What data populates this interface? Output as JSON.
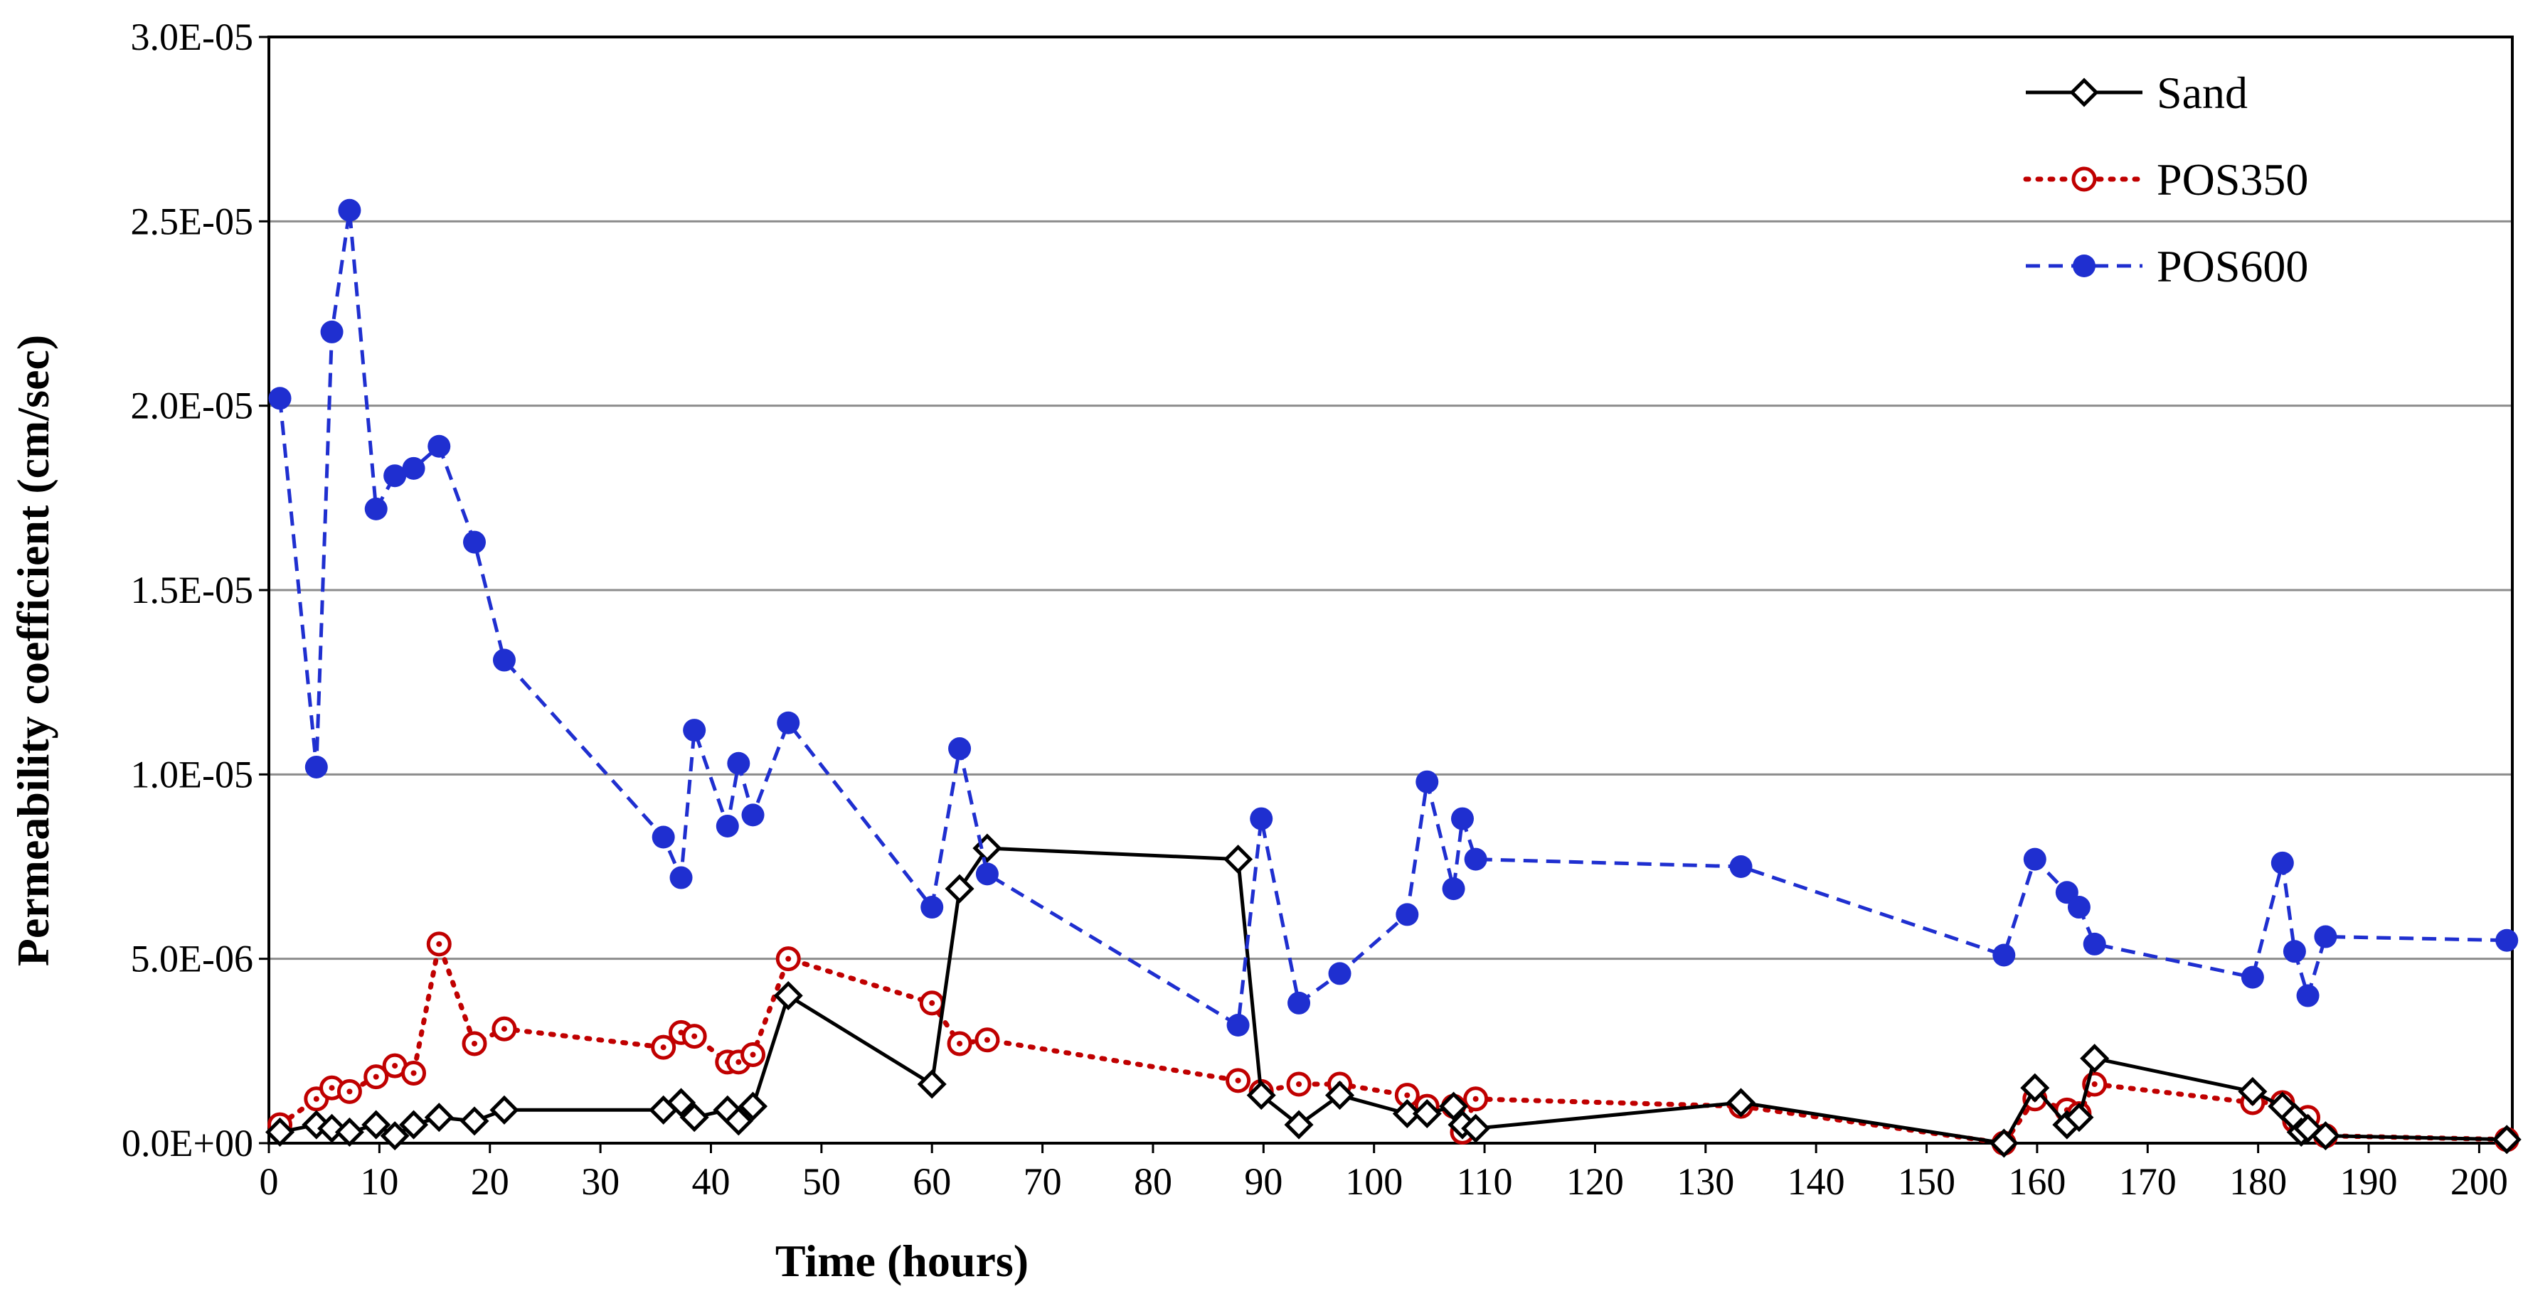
{
  "chart_data": {
    "type": "line",
    "title": "",
    "xlabel": "Time (hours)",
    "ylabel": "Permeability coefficient  (cm/sec)",
    "xlim": [
      0,
      203
    ],
    "ylim": [
      0,
      3e-05
    ],
    "x_ticks": [
      0,
      10,
      20,
      30,
      40,
      50,
      60,
      70,
      80,
      90,
      100,
      110,
      120,
      130,
      140,
      150,
      160,
      170,
      180,
      190,
      200
    ],
    "y_ticks": [
      0,
      5e-06,
      1e-05,
      1.5e-05,
      2e-05,
      2.5e-05,
      3e-05
    ],
    "y_tick_labels": [
      "0.0E+00",
      "5.0E-06",
      "1.0E-05",
      "1.5E-05",
      "2.0E-05",
      "2.5E-05",
      "3.0E-05"
    ],
    "grid": "horizontal",
    "legend_position": "top-right",
    "series": [
      {
        "name": "Sand",
        "color": "#000000",
        "line_style": "solid",
        "marker": "diamond-open",
        "points": [
          [
            1.0,
            3e-07
          ],
          [
            4.3,
            5e-07
          ],
          [
            5.7,
            4e-07
          ],
          [
            7.3,
            3e-07
          ],
          [
            9.7,
            5e-07
          ],
          [
            11.4,
            2e-07
          ],
          [
            13.1,
            5e-07
          ],
          [
            15.4,
            7e-07
          ],
          [
            18.6,
            6e-07
          ],
          [
            21.3,
            9e-07
          ],
          [
            35.7,
            9e-07
          ],
          [
            37.3,
            1.1e-06
          ],
          [
            38.5,
            7e-07
          ],
          [
            41.5,
            9e-07
          ],
          [
            42.5,
            6e-07
          ],
          [
            43.8,
            1e-06
          ],
          [
            47.0,
            4e-06
          ],
          [
            60.0,
            1.6e-06
          ],
          [
            62.5,
            6.9e-06
          ],
          [
            65.0,
            8e-06
          ],
          [
            87.7,
            7.7e-06
          ],
          [
            89.8,
            1.3e-06
          ],
          [
            93.2,
            5e-07
          ],
          [
            96.9,
            1.3e-06
          ],
          [
            103.0,
            8e-07
          ],
          [
            104.8,
            8e-07
          ],
          [
            107.2,
            1e-06
          ],
          [
            108.0,
            5e-07
          ],
          [
            109.2,
            4e-07
          ],
          [
            133.2,
            1.1e-06
          ],
          [
            157.0,
            0.0
          ],
          [
            159.8,
            1.5e-06
          ],
          [
            162.7,
            5e-07
          ],
          [
            163.8,
            7e-07
          ],
          [
            165.2,
            2.3e-06
          ],
          [
            179.5,
            1.4e-06
          ],
          [
            182.2,
            1e-06
          ],
          [
            183.3,
            7e-07
          ],
          [
            183.9,
            3e-07
          ],
          [
            184.5,
            4e-07
          ],
          [
            186.1,
            2e-07
          ],
          [
            202.5,
            1e-07
          ]
        ]
      },
      {
        "name": "POS350",
        "color": "#C00000",
        "line_style": "dotted",
        "marker": "circle-open-dot",
        "points": [
          [
            1.0,
            5e-07
          ],
          [
            4.3,
            1.2e-06
          ],
          [
            5.7,
            1.5e-06
          ],
          [
            7.3,
            1.4e-06
          ],
          [
            9.7,
            1.8e-06
          ],
          [
            11.4,
            2.1e-06
          ],
          [
            13.1,
            1.9e-06
          ],
          [
            15.4,
            5.4e-06
          ],
          [
            18.6,
            2.7e-06
          ],
          [
            21.3,
            3.1e-06
          ],
          [
            35.7,
            2.6e-06
          ],
          [
            37.3,
            3e-06
          ],
          [
            38.5,
            2.9e-06
          ],
          [
            41.5,
            2.2e-06
          ],
          [
            42.5,
            2.2e-06
          ],
          [
            43.8,
            2.4e-06
          ],
          [
            47.0,
            5e-06
          ],
          [
            60.0,
            3.8e-06
          ],
          [
            62.5,
            2.7e-06
          ],
          [
            65.0,
            2.8e-06
          ],
          [
            87.7,
            1.7e-06
          ],
          [
            89.8,
            1.4e-06
          ],
          [
            93.2,
            1.6e-06
          ],
          [
            96.9,
            1.6e-06
          ],
          [
            103.0,
            1.3e-06
          ],
          [
            104.8,
            1e-06
          ],
          [
            107.2,
            1e-06
          ],
          [
            108.0,
            3e-07
          ],
          [
            109.2,
            1.2e-06
          ],
          [
            133.2,
            1e-06
          ],
          [
            157.0,
            0.0
          ],
          [
            159.8,
            1.2e-06
          ],
          [
            162.7,
            9e-07
          ],
          [
            163.8,
            8e-07
          ],
          [
            165.2,
            1.6e-06
          ],
          [
            179.5,
            1.1e-06
          ],
          [
            182.2,
            1.1e-06
          ],
          [
            183.3,
            6e-07
          ],
          [
            183.9,
            4e-07
          ],
          [
            184.5,
            7e-07
          ],
          [
            186.1,
            2e-07
          ],
          [
            202.5,
            1e-07
          ]
        ]
      },
      {
        "name": "POS600",
        "color": "#1F2FD0",
        "line_style": "dashed",
        "marker": "circle-filled",
        "points": [
          [
            1.0,
            2.02e-05
          ],
          [
            4.3,
            1.02e-05
          ],
          [
            5.7,
            2.2e-05
          ],
          [
            7.3,
            2.53e-05
          ],
          [
            9.7,
            1.72e-05
          ],
          [
            11.4,
            1.81e-05
          ],
          [
            13.1,
            1.83e-05
          ],
          [
            15.4,
            1.89e-05
          ],
          [
            18.6,
            1.63e-05
          ],
          [
            21.3,
            1.31e-05
          ],
          [
            35.7,
            8.3e-06
          ],
          [
            37.3,
            7.2e-06
          ],
          [
            38.5,
            1.12e-05
          ],
          [
            41.5,
            8.6e-06
          ],
          [
            42.5,
            1.03e-05
          ],
          [
            43.8,
            8.9e-06
          ],
          [
            47.0,
            1.14e-05
          ],
          [
            60.0,
            6.4e-06
          ],
          [
            62.5,
            1.07e-05
          ],
          [
            65.0,
            7.3e-06
          ],
          [
            87.7,
            3.2e-06
          ],
          [
            89.8,
            8.8e-06
          ],
          [
            93.2,
            3.8e-06
          ],
          [
            96.9,
            4.6e-06
          ],
          [
            103.0,
            6.2e-06
          ],
          [
            104.8,
            9.8e-06
          ],
          [
            107.2,
            6.9e-06
          ],
          [
            108.0,
            8.8e-06
          ],
          [
            109.2,
            7.7e-06
          ],
          [
            133.2,
            7.5e-06
          ],
          [
            157.0,
            5.1e-06
          ],
          [
            159.8,
            7.7e-06
          ],
          [
            162.7,
            6.8e-06
          ],
          [
            163.8,
            6.4e-06
          ],
          [
            165.2,
            5.4e-06
          ],
          [
            179.5,
            4.5e-06
          ],
          [
            182.2,
            7.6e-06
          ],
          [
            183.3,
            5.2e-06
          ],
          [
            184.5,
            4e-06
          ],
          [
            186.1,
            5.6e-06
          ],
          [
            202.5,
            5.5e-06
          ]
        ]
      }
    ]
  }
}
